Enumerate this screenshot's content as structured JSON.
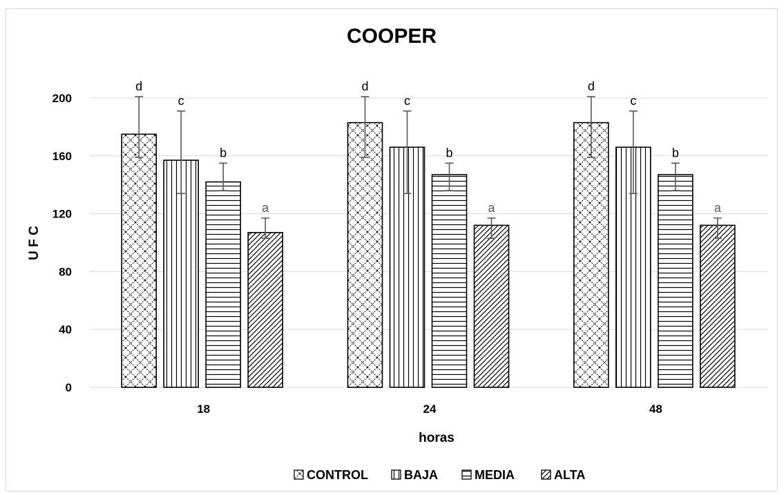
{
  "chart_data": {
    "type": "bar",
    "title": "COOPER",
    "xlabel": "horas",
    "ylabel": "U F C",
    "categories": [
      "18",
      "24",
      "48"
    ],
    "ylim": [
      0,
      200
    ],
    "yticks": [
      0,
      40,
      80,
      120,
      160,
      200
    ],
    "grid": true,
    "legend_position": "bottom",
    "series": [
      {
        "name": "CONTROL",
        "pattern": "crosshatch-dashed",
        "values": [
          175,
          183,
          183
        ],
        "error_low": [
          159,
          159,
          159
        ],
        "error_high": [
          201,
          201,
          201
        ],
        "labels": [
          "d",
          "d",
          "d"
        ]
      },
      {
        "name": "BAJA",
        "pattern": "vertical-lines",
        "values": [
          157,
          166,
          166
        ],
        "error_low": [
          134,
          134,
          134
        ],
        "error_high": [
          191,
          191,
          191
        ],
        "labels": [
          "c",
          "c",
          "c"
        ]
      },
      {
        "name": "MEDIA",
        "pattern": "horizontal-lines",
        "values": [
          142,
          147,
          147
        ],
        "error_low": [
          136,
          136,
          136
        ],
        "error_high": [
          155,
          155,
          155
        ],
        "labels": [
          "b",
          "b",
          "b"
        ]
      },
      {
        "name": "ALTA",
        "pattern": "diagonal-lines",
        "values": [
          107,
          112,
          112
        ],
        "error_low": [
          103,
          103,
          103
        ],
        "error_high": [
          117,
          117,
          117
        ],
        "labels": [
          "a",
          "a",
          "a"
        ]
      }
    ]
  }
}
